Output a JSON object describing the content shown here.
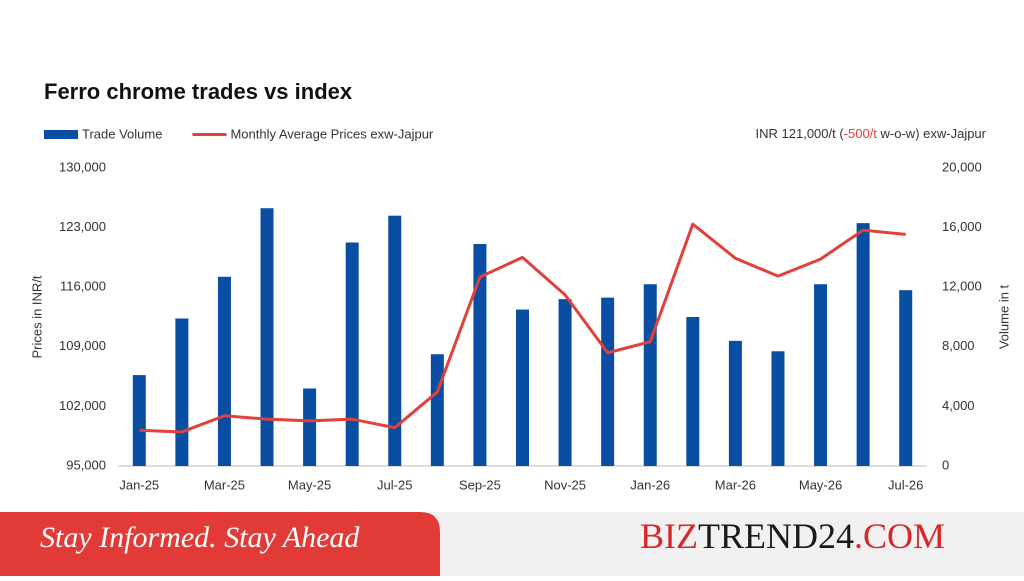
{
  "chart_data": {
    "type": "bar-line",
    "title": "Ferro chrome trades vs index",
    "annotation": [
      "INR 121,000/t (",
      "-500/t",
      " w-o-w) exw-Jajpur"
    ],
    "ylabel": "Prices in INR/t",
    "y2label": "Volume in t",
    "categories": [
      "Jan-25",
      null,
      "Mar-25",
      null,
      "May-25",
      null,
      "Jul-25",
      null,
      "Sep-25",
      null,
      "Nov-25",
      null,
      "Jan-26",
      null,
      "Mar-26",
      null,
      "May-26",
      null,
      "Jul-26"
    ],
    "series": [
      {
        "name": "Trade Volume",
        "color": "#0a4ea3",
        "axis": "y2",
        "kind": "bar",
        "values": [
          6100,
          9900,
          12700,
          17300,
          5200,
          15000,
          16800,
          7500,
          14900,
          10500,
          11200,
          11300,
          12200,
          10000,
          8400,
          7700,
          12200,
          16300,
          11800
        ]
      },
      {
        "name": "Monthly Average Prices exw-Jajpur",
        "color": "#e2403a",
        "axis": "y",
        "kind": "line",
        "values": [
          99200,
          99000,
          100900,
          100500,
          100300,
          100500,
          99500,
          103700,
          117200,
          119500,
          115100,
          108300,
          109600,
          123400,
          119400,
          117300,
          119300,
          122700,
          122200
        ]
      }
    ],
    "ylim": [
      95000,
      130000
    ],
    "yticks": [
      {
        "value": 95000,
        "label": "95,000"
      },
      {
        "value": 102000,
        "label": "102,000"
      },
      {
        "value": 109000,
        "label": "109,000"
      },
      {
        "value": 116000,
        "label": "116,000"
      },
      {
        "value": 123000,
        "label": "123,000"
      },
      {
        "value": 130000,
        "label": "130,000"
      }
    ],
    "y2lim": [
      0,
      20000
    ],
    "y2ticks": [
      0,
      {
        "value": 4000,
        "label": "4,000"
      },
      {
        "value": 8000,
        "label": "8,000"
      },
      {
        "value": 12000,
        "label": "12,000"
      },
      {
        "value": 16000,
        "label": "16,000"
      },
      {
        "value": 20000,
        "label": "20,000"
      }
    ]
  },
  "footer": {
    "tagline": "Stay Informed. Stay Ahead",
    "brand": [
      "BIZ",
      "TREND24",
      ".COM"
    ]
  }
}
